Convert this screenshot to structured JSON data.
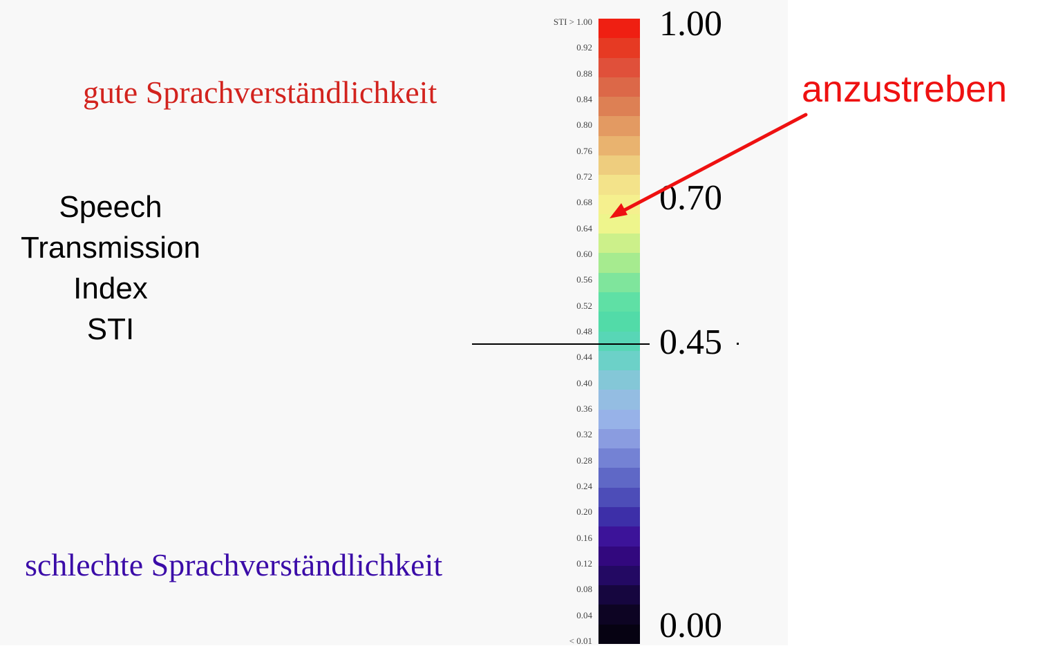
{
  "heading_good": "gute Sprachverständlichkeit",
  "heading_bad": "schlechte Sprachverständlichkeit",
  "sti_title": [
    "Speech",
    "Transmission",
    "Index",
    "STI"
  ],
  "colorbar": {
    "top_label": "STI  > 1.00",
    "bottom_label": "< 0.01",
    "ticks": [
      "0.92",
      "0.88",
      "0.84",
      "0.80",
      "0.76",
      "0.72",
      "0.68",
      "0.64",
      "0.60",
      "0.56",
      "0.52",
      "0.48",
      "0.44",
      "0.40",
      "0.36",
      "0.32",
      "0.28",
      "0.24",
      "0.20",
      "0.16",
      "0.12",
      "0.08",
      "0.04"
    ],
    "bands_top_to_bottom": [
      "#ef1f12",
      "#e63a23",
      "#e0503a",
      "#dc6848",
      "#dd8054",
      "#e39a62",
      "#e9b36f",
      "#eecd7e",
      "#f3e38a",
      "#f5f08e",
      "#eef58c",
      "#ccf08a",
      "#a6eb8f",
      "#7fe59c",
      "#5fe0a5",
      "#52dba8",
      "#58d6b6",
      "#6cd1c8",
      "#84c7d7",
      "#94bde2",
      "#97b2e8",
      "#8a9ce0",
      "#7482d4",
      "#5f68c6",
      "#4d4db8",
      "#3d2fa8",
      "#3c1399",
      "#32087e",
      "#230963",
      "#16063f",
      "#0d0423",
      "#060212"
    ],
    "colors": {
      "good": "#d2231e",
      "bad": "#3b0ca8",
      "target": "#ee1111"
    }
  },
  "big_labels": {
    "top": "1.00",
    "upper": "0.70",
    "middle": "0.45",
    "bottom": "0.00"
  },
  "annotation": {
    "label": "anzustreben",
    "target_value": 0.66
  }
}
